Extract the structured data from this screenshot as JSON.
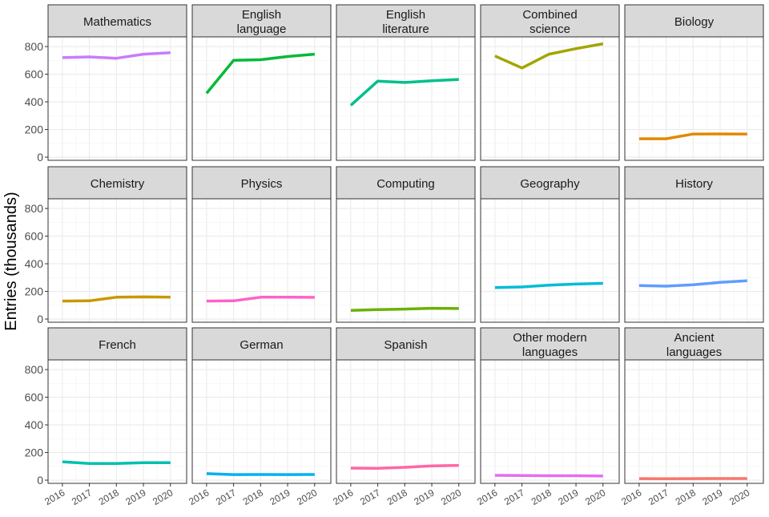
{
  "chart_data": {
    "type": "line",
    "title": "",
    "xlabel": "",
    "ylabel": "Entries (thousands)",
    "x": [
      2016,
      2017,
      2018,
      2019,
      2020
    ],
    "x_tick_labels": [
      "2016",
      "2017",
      "2018",
      "2019",
      "2020"
    ],
    "y_ticks": [
      0,
      200,
      400,
      600,
      800
    ],
    "y_tick_labels": [
      "0",
      "200",
      "400",
      "600",
      "800"
    ],
    "ylim": [
      -23,
      870
    ],
    "xlim": [
      2015.47,
      2020.6
    ],
    "grid": true,
    "legend": "none",
    "facets": [
      {
        "name": "Mathematics",
        "label_lines": [
          "Mathematics"
        ],
        "color": "#C77CFF",
        "values": [
          720,
          725,
          715,
          745,
          755
        ]
      },
      {
        "name": "English language",
        "label_lines": [
          "English",
          "language"
        ],
        "color": "#00BA38",
        "values": [
          462,
          700,
          705,
          728,
          745
        ]
      },
      {
        "name": "English literature",
        "label_lines": [
          "English",
          "literature"
        ],
        "color": "#00C08B",
        "values": [
          375,
          550,
          540,
          552,
          562
        ]
      },
      {
        "name": "Combined science",
        "label_lines": [
          "Combined",
          "science"
        ],
        "color": "#A3A500",
        "values": [
          732,
          645,
          745,
          785,
          820
        ]
      },
      {
        "name": "Biology",
        "label_lines": [
          "Biology"
        ],
        "color": "#E58700",
        "values": [
          133,
          133,
          167,
          168,
          167
        ]
      },
      {
        "name": "Chemistry",
        "label_lines": [
          "Chemistry"
        ],
        "color": "#C99800",
        "values": [
          130,
          132,
          158,
          160,
          158
        ]
      },
      {
        "name": "Physics",
        "label_lines": [
          "Physics"
        ],
        "color": "#FF61C9",
        "values": [
          130,
          132,
          158,
          158,
          157
        ]
      },
      {
        "name": "Computing",
        "label_lines": [
          "Computing"
        ],
        "color": "#6BB100",
        "values": [
          62,
          68,
          72,
          78,
          76
        ]
      },
      {
        "name": "Geography",
        "label_lines": [
          "Geography"
        ],
        "color": "#00BCD8",
        "values": [
          228,
          232,
          245,
          253,
          258
        ]
      },
      {
        "name": "History",
        "label_lines": [
          "History"
        ],
        "color": "#619CFF",
        "values": [
          242,
          238,
          248,
          265,
          277
        ]
      },
      {
        "name": "French",
        "label_lines": [
          "French"
        ],
        "color": "#00C0AF",
        "values": [
          133,
          121,
          121,
          126,
          126
        ]
      },
      {
        "name": "German",
        "label_lines": [
          "German"
        ],
        "color": "#00B0F6",
        "values": [
          47,
          40,
          41,
          40,
          41
        ]
      },
      {
        "name": "Spanish",
        "label_lines": [
          "Spanish"
        ],
        "color": "#FF67A4",
        "values": [
          87,
          86,
          93,
          103,
          107
        ]
      },
      {
        "name": "Other modern languages",
        "label_lines": [
          "Other modern",
          "languages"
        ],
        "color": "#E76BF3",
        "values": [
          35,
          33,
          32,
          32,
          30
        ]
      },
      {
        "name": "Ancient languages",
        "label_lines": [
          "Ancient",
          "languages"
        ],
        "color": "#F8766D",
        "values": [
          11,
          10,
          11,
          12,
          12
        ]
      }
    ]
  }
}
